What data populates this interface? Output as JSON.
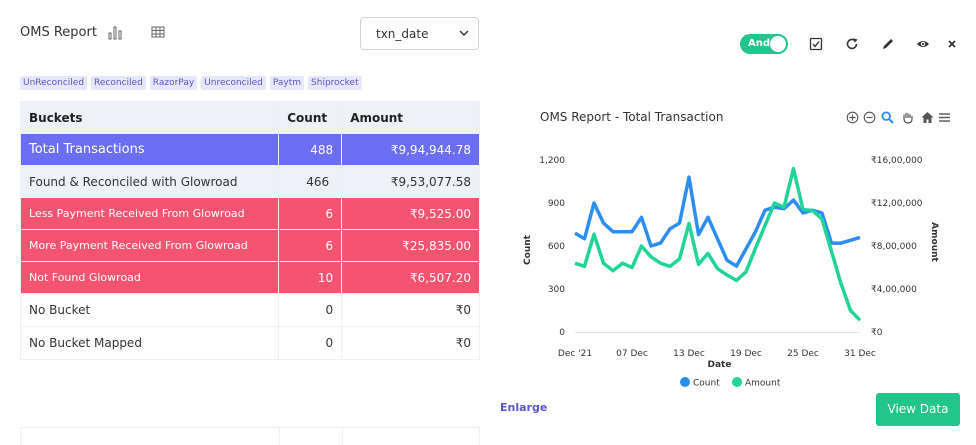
{
  "header": {
    "title": "OMS Report",
    "select_value": "txn_date",
    "toggle_label": "And"
  },
  "chips": [
    "UnReconciled",
    "Reconciled",
    "RazorPay",
    "Unreconciled",
    "Paytm",
    "Shiprocket"
  ],
  "table": {
    "headers": [
      "Buckets",
      "Count",
      "Amount"
    ],
    "rows": [
      {
        "bucket": "Total  Transactions",
        "count": "488",
        "amount": "₹9,94,944.78",
        "style": "total"
      },
      {
        "bucket": "Found & Reconciled with Glowroad",
        "count": "466",
        "amount": "₹9,53,077.58",
        "style": "recon"
      },
      {
        "bucket": "Less Payment Received From Glowroad",
        "count": "6",
        "amount": "₹9,525.00",
        "style": "red"
      },
      {
        "bucket": "More Payment Received From Glowroad",
        "count": "6",
        "amount": "₹25,835.00",
        "style": "red"
      },
      {
        "bucket": "Not Found Glowroad",
        "count": "10",
        "amount": "₹6,507.20",
        "style": "red"
      },
      {
        "bucket": "No Bucket",
        "count": "0",
        "amount": "₹0",
        "style": "plain"
      },
      {
        "bucket": "No Bucket Mapped",
        "count": "0",
        "amount": "₹0",
        "style": "plain"
      }
    ]
  },
  "chart_data": {
    "type": "line",
    "title": "OMS Report - Total Transaction",
    "xlabel": "Date",
    "ylabel_left": "Count",
    "ylabel_right": "Amount",
    "x_ticks": [
      "Dec '21",
      "07 Dec",
      "13 Dec",
      "19 Dec",
      "25 Dec",
      "31 Dec"
    ],
    "y_left_ticks": [
      "0",
      "300",
      "600",
      "900",
      "1,200"
    ],
    "y_right_ticks": [
      "₹0",
      "₹4,00,000",
      "₹8,00,000",
      "₹12,00,000",
      "₹16,00,000"
    ],
    "ylim_left": [
      0,
      1200
    ],
    "ylim_right": [
      0,
      1600000
    ],
    "x": [
      1,
      2,
      3,
      4,
      5,
      6,
      7,
      8,
      9,
      10,
      11,
      12,
      13,
      14,
      15,
      16,
      17,
      18,
      19,
      20,
      21,
      22,
      23,
      24,
      25,
      26,
      27,
      28,
      29,
      30,
      31
    ],
    "series": [
      {
        "name": "Count",
        "color": "#2b8ef0",
        "axis": "left",
        "values": [
          690,
          650,
          900,
          760,
          700,
          700,
          700,
          800,
          600,
          620,
          720,
          760,
          1080,
          680,
          800,
          650,
          500,
          460,
          580,
          700,
          850,
          870,
          860,
          920,
          830,
          850,
          830,
          620,
          620,
          640,
          660
        ]
      },
      {
        "name": "Amount",
        "color": "#22d39a",
        "axis": "right",
        "values": [
          640000,
          610000,
          910000,
          640000,
          570000,
          640000,
          600000,
          800000,
          700000,
          640000,
          610000,
          680000,
          1010000,
          630000,
          730000,
          590000,
          530000,
          480000,
          560000,
          780000,
          990000,
          1200000,
          1160000,
          1520000,
          1140000,
          1130000,
          1050000,
          750000,
          450000,
          200000,
          110000
        ]
      }
    ]
  },
  "footer": {
    "enlarge": "Enlarge",
    "view_data": "View Data"
  },
  "icons": [
    "bar-chart-icon",
    "table-icon",
    "checkbox-icon",
    "refresh-icon",
    "pencil-icon",
    "eye-icon",
    "close-icon",
    "zoom-in-icon",
    "zoom-out-icon",
    "magnify-icon",
    "pan-icon",
    "home-icon",
    "menu-icon"
  ]
}
